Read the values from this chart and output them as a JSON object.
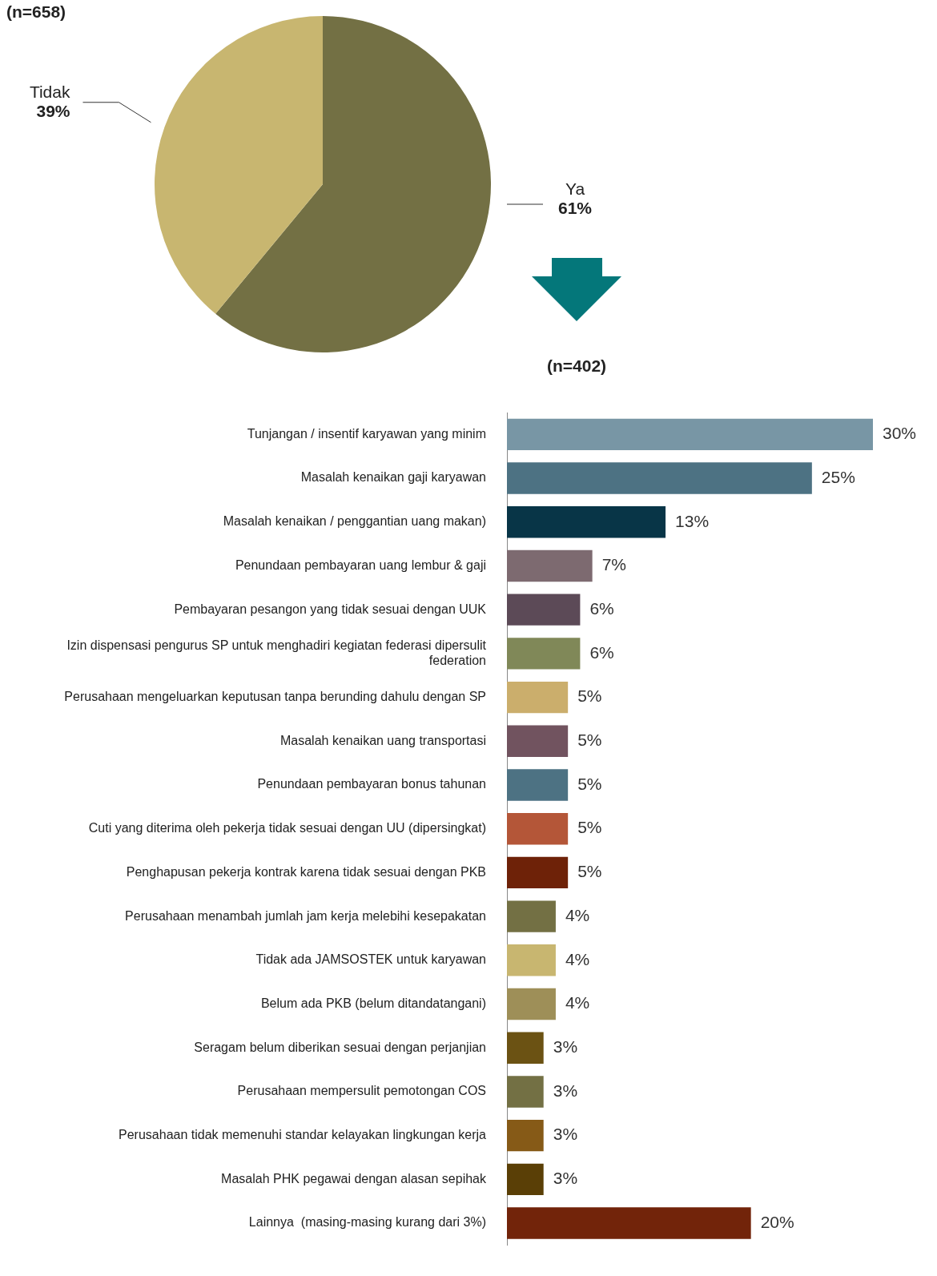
{
  "chart_data": [
    {
      "type": "pie",
      "title": "(n=658)",
      "categories": [
        "Ya",
        "Tidak"
      ],
      "values": [
        61,
        39
      ],
      "colors": [
        "#737044",
        "#c8b670"
      ],
      "value_labels": [
        "61%",
        "39%"
      ]
    },
    {
      "type": "bar",
      "orientation": "horizontal",
      "title": "(n=402)",
      "categories": [
        "Tunjangan / insentif karyawan yang minim",
        "Masalah kenaikan gaji karyawan",
        "Masalah kenaikan / penggantian uang makan)",
        "Penundaan pembayaran uang lembur & gaji",
        "Pembayaran pesangon yang tidak sesuai dengan UUK",
        "Izin dispensasi pengurus SP untuk menghadiri kegiatan federasi dipersulit federation",
        "Perusahaan mengeluarkan keputusan tanpa berunding dahulu dengan SP",
        "Masalah kenaikan uang transportasi",
        "Penundaan pembayaran bonus tahunan",
        "Cuti yang diterima oleh pekerja tidak sesuai dengan UU (dipersingkat)",
        "Penghapusan pekerja kontrak karena tidak sesuai dengan PKB",
        "Perusahaan menambah jumlah jam kerja melebihi kesepakatan",
        "Tidak ada JAMSOSTEK untuk karyawan",
        "Belum ada PKB (belum ditandatangani)",
        "Seragam belum diberikan sesuai dengan perjanjian",
        "Perusahaan mempersulit pemotongan COS",
        "Perusahaan tidak memenuhi standar kelayakan lingkungan kerja",
        "Masalah PHK pegawai dengan alasan sepihak",
        "Lainnya  (masing-masing kurang dari 3%)"
      ],
      "values": [
        30,
        25,
        13,
        7,
        6,
        6,
        5,
        5,
        5,
        5,
        5,
        4,
        4,
        4,
        3,
        3,
        3,
        3,
        20
      ],
      "colors": [
        "#7896a5",
        "#4d7283",
        "#083547",
        "#7d6a70",
        "#5c4a57",
        "#808858",
        "#cbae6c",
        "#71535f",
        "#4d7283",
        "#b45638",
        "#6e2208",
        "#737044",
        "#c8b670",
        "#9e8f58",
        "#6b5213",
        "#737044",
        "#865a17",
        "#5a3f06",
        "#72240a"
      ],
      "value_labels": [
        "30%",
        "25%",
        "13%",
        "7%",
        "6%",
        "6%",
        "5%",
        "5%",
        "5%",
        "5%",
        "5%",
        "4%",
        "4%",
        "4%",
        "3%",
        "3%",
        "3%",
        "3%",
        "20%"
      ]
    }
  ]
}
